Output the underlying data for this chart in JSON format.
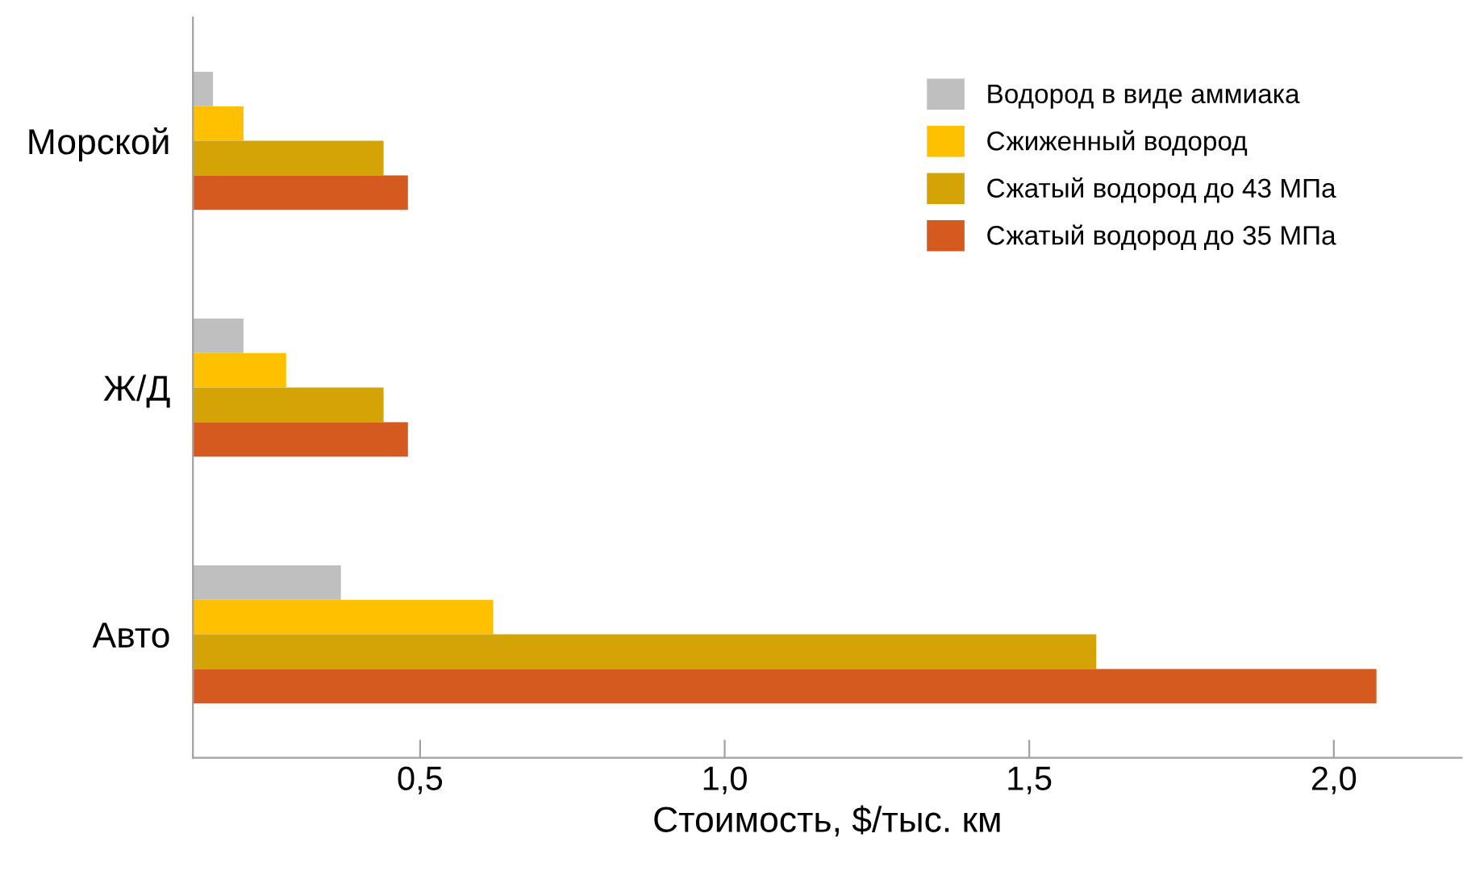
{
  "chart_data": {
    "type": "bar",
    "orientation": "horizontal",
    "xlabel": "Стоимость, $/тыс. км",
    "categories": [
      "Морской",
      "Ж/Д",
      "Авто"
    ],
    "series": [
      {
        "name": "Водород в виде аммиака",
        "color": "#bfbfbf",
        "values": [
          0.16,
          0.21,
          0.37
        ]
      },
      {
        "name": "Сжиженный водород",
        "color": "#ffc000",
        "values": [
          0.21,
          0.28,
          0.62
        ]
      },
      {
        "name": "Сжатый водород до 43 МПа",
        "color": "#d4a406",
        "values": [
          0.44,
          0.44,
          1.61
        ]
      },
      {
        "name": "Сжатый водород до 35 МПа",
        "color": "#d55a20",
        "values": [
          0.48,
          0.48,
          2.07
        ]
      }
    ],
    "xlim": [
      0.127,
      2.21
    ],
    "xticks": [
      {
        "value": 0.5,
        "label": "0,5"
      },
      {
        "value": 1.0,
        "label": "1,0"
      },
      {
        "value": 1.5,
        "label": "1,5"
      },
      {
        "value": 2.0,
        "label": "2,0"
      }
    ],
    "grid": false,
    "legend": "top right"
  }
}
